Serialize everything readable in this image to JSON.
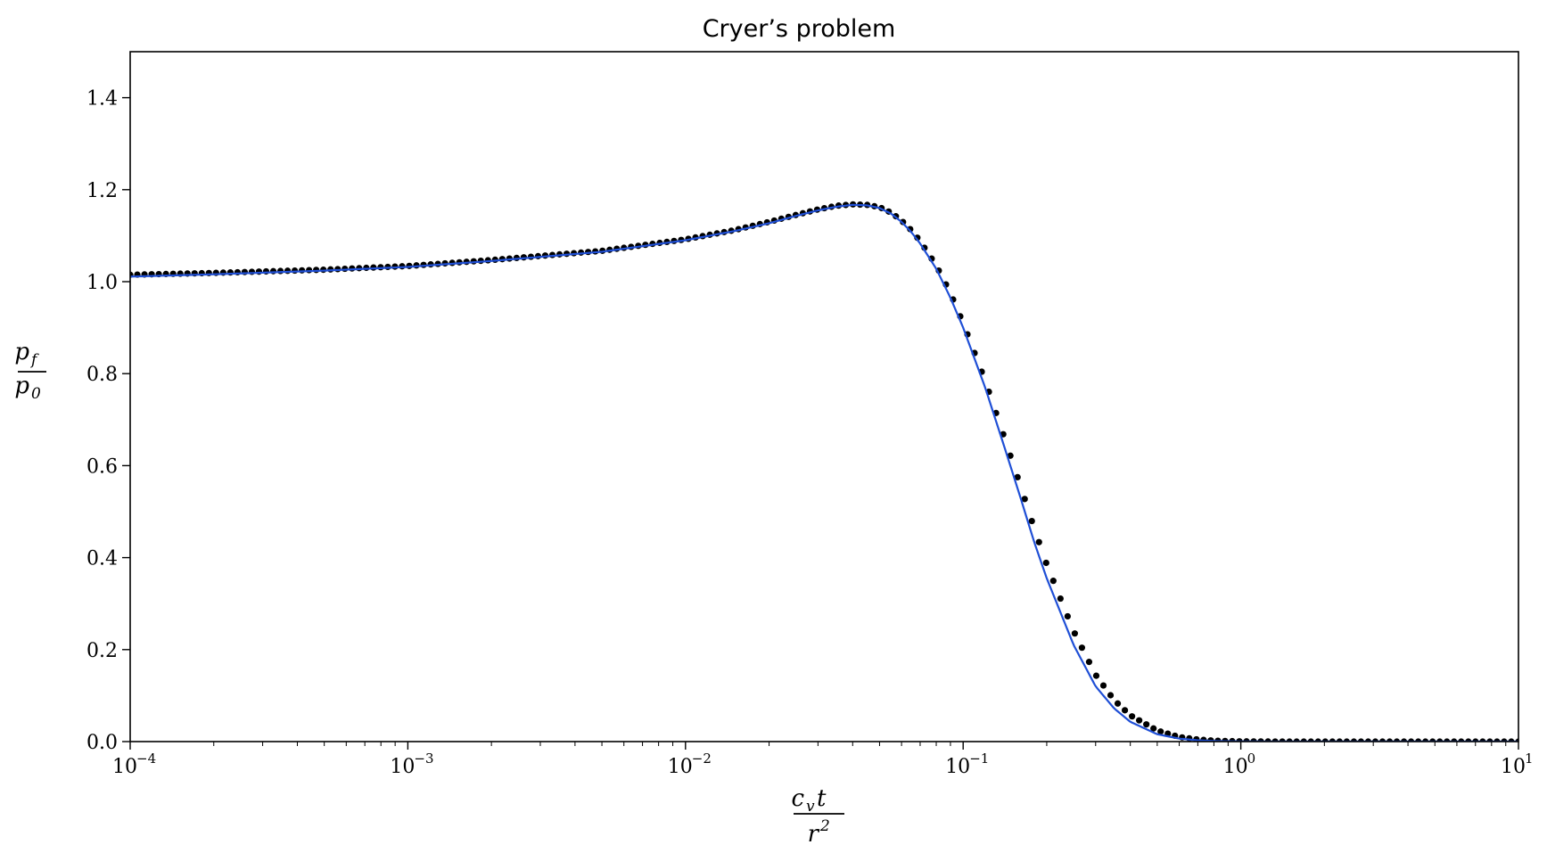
{
  "chart_data": {
    "type": "line",
    "title": "Cryer’s problem",
    "xlabel": {
      "num": "c",
      "num_sub": "v",
      "num_tail": "t",
      "den": "r",
      "den_sup": "2"
    },
    "ylabel": {
      "num": "p",
      "num_sub": "f",
      "den": "p",
      "den_sub": "0"
    },
    "xscale": "log",
    "xlim": [
      0.0001,
      10
    ],
    "ylim": [
      0.0,
      1.5
    ],
    "x_ticks": [
      {
        "base": "10",
        "exp": "−4",
        "value": 0.0001
      },
      {
        "base": "10",
        "exp": "−3",
        "value": 0.001
      },
      {
        "base": "10",
        "exp": "−2",
        "value": 0.01
      },
      {
        "base": "10",
        "exp": "−1",
        "value": 0.1
      },
      {
        "base": "10",
        "exp": "0",
        "value": 1
      },
      {
        "base": "10",
        "exp": "1",
        "value": 10
      }
    ],
    "y_ticks": [
      "0.0",
      "0.2",
      "0.4",
      "0.6",
      "0.8",
      "1.0",
      "1.2",
      "1.4"
    ],
    "grid": false,
    "colors": {
      "analytical_line": "#1f4fd6",
      "numerical_markers": "#000000"
    },
    "series": [
      {
        "style": "line",
        "x": [
          0.0001,
          0.0002,
          0.0005,
          0.001,
          0.002,
          0.005,
          0.01,
          0.015,
          0.02,
          0.025,
          0.03,
          0.035,
          0.04,
          0.045,
          0.05,
          0.055,
          0.06,
          0.065,
          0.07,
          0.08,
          0.09,
          0.1,
          0.12,
          0.14,
          0.16,
          0.18,
          0.2,
          0.25,
          0.3,
          0.35,
          0.4,
          0.5,
          0.6,
          0.7,
          0.8,
          1.0,
          1.5,
          2,
          5,
          10
        ],
        "y": [
          1.011,
          1.016,
          1.024,
          1.032,
          1.045,
          1.065,
          1.09,
          1.11,
          1.127,
          1.143,
          1.155,
          1.163,
          1.167,
          1.166,
          1.16,
          1.148,
          1.13,
          1.108,
          1.083,
          1.028,
          0.965,
          0.9,
          0.77,
          0.645,
          0.535,
          0.435,
          0.355,
          0.21,
          0.12,
          0.072,
          0.043,
          0.016,
          0.0065,
          0.0028,
          0.0012,
          0.0003,
          0.0,
          0.0,
          0.0,
          0.0
        ]
      },
      {
        "style": "markers",
        "x": [
          0.0001,
          0.0002,
          0.0005,
          0.001,
          0.002,
          0.005,
          0.01,
          0.015,
          0.02,
          0.025,
          0.03,
          0.035,
          0.04,
          0.045,
          0.05,
          0.055,
          0.06,
          0.065,
          0.07,
          0.08,
          0.09,
          0.1,
          0.12,
          0.14,
          0.16,
          0.18,
          0.2,
          0.25,
          0.3,
          0.35,
          0.4,
          0.5,
          0.6,
          0.7,
          0.8,
          1.0,
          1.5,
          2,
          5,
          10
        ],
        "y": [
          1.015,
          1.019,
          1.026,
          1.034,
          1.047,
          1.067,
          1.092,
          1.112,
          1.13,
          1.145,
          1.157,
          1.165,
          1.168,
          1.167,
          1.162,
          1.15,
          1.133,
          1.112,
          1.088,
          1.035,
          0.975,
          0.91,
          0.785,
          0.665,
          0.56,
          0.465,
          0.385,
          0.24,
          0.145,
          0.09,
          0.057,
          0.024,
          0.01,
          0.0045,
          0.002,
          0.0005,
          0.0,
          0.0,
          0.0,
          0.0
        ],
        "marker_count": 195
      }
    ]
  }
}
